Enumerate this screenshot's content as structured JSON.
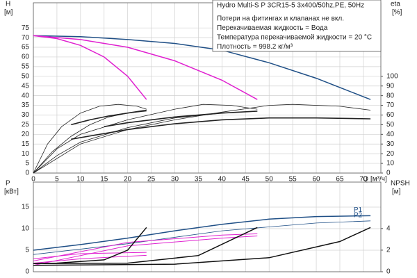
{
  "chart_data": [
    {
      "type": "line",
      "title": "Hydro Multi-S P 3CR15-5 3x400/50hz,PE, 50Hz",
      "annotations": [
        "Потери на фитингах и клапанах не вкл.",
        "Перекачиваемая жидкость = Вода",
        "Температура перекачиваемой жидкости = 20 °C",
        "Плотность = 998.2 кг/м³"
      ],
      "ylabel": "H",
      "yunit": "[м]",
      "y2label": "eta",
      "y2unit": "[%]",
      "xlabel": "Q",
      "xunit": "[м³/ч]",
      "xlim": [
        0,
        73.7
      ],
      "xticks": [
        0,
        5,
        10,
        15,
        20,
        25,
        30,
        35,
        40,
        45,
        50,
        55,
        60,
        65,
        70
      ],
      "ylim": [
        0,
        88
      ],
      "yticks": [
        0,
        5,
        10,
        15,
        20,
        25,
        30,
        35,
        40,
        45,
        50,
        55,
        60,
        65,
        70,
        75
      ],
      "y2lim": [
        0,
        176
      ],
      "y2ticks": [
        0,
        10,
        20,
        30,
        40,
        50,
        60,
        70,
        80,
        90,
        100
      ],
      "grid": true,
      "series": [
        {
          "color": "#1f4f86",
          "width": 1.5,
          "x": [
            0,
            10,
            20,
            30,
            40,
            50,
            60,
            71.5
          ],
          "values": [
            71,
            70.5,
            69,
            67,
            63.5,
            57,
            49,
            38
          ]
        },
        {
          "color": "#e020d0",
          "width": 1.5,
          "x": [
            0,
            5,
            10,
            15,
            20,
            24
          ],
          "values": [
            71,
            69.5,
            66,
            60,
            50,
            38
          ]
        },
        {
          "color": "#e020d0",
          "width": 1.5,
          "x": [
            0,
            10,
            20,
            30,
            40,
            47.5
          ],
          "values": [
            71,
            69,
            65,
            58,
            48,
            38
          ]
        },
        {
          "color": "#222222",
          "width": 0.8,
          "axis": "y2",
          "x": [
            0,
            3,
            6,
            10,
            14,
            18,
            22,
            24
          ],
          "values": [
            0,
            30,
            48,
            62,
            69,
            71,
            69,
            66
          ]
        },
        {
          "color": "#222222",
          "width": 0.8,
          "axis": "y2",
          "x": [
            0,
            4,
            8,
            12,
            16,
            20,
            24
          ],
          "values": [
            0,
            22,
            38,
            50,
            58,
            62,
            64
          ]
        },
        {
          "color": "#222222",
          "width": 1.6,
          "axis": "y2",
          "x": [
            8,
            12,
            16,
            20,
            24
          ],
          "values": [
            50,
            55,
            59,
            62,
            65
          ]
        },
        {
          "color": "#222222",
          "width": 0.8,
          "axis": "y2",
          "x": [
            0,
            5,
            10,
            20,
            30,
            36,
            42,
            47.5
          ],
          "values": [
            0,
            25,
            40,
            55,
            66,
            71,
            70,
            66
          ]
        },
        {
          "color": "#222222",
          "width": 0.8,
          "axis": "y2",
          "x": [
            0,
            5,
            10,
            20,
            30,
            40,
            47.5
          ],
          "values": [
            0,
            18,
            32,
            47,
            57,
            62,
            64
          ]
        },
        {
          "color": "#222222",
          "width": 1.6,
          "axis": "y2",
          "x": [
            15,
            20,
            30,
            40,
            47.5
          ],
          "values": [
            48,
            52,
            58,
            62,
            64
          ]
        },
        {
          "color": "#222222",
          "width": 0.8,
          "axis": "y2",
          "x": [
            0,
            10,
            20,
            30,
            40,
            50,
            55,
            65,
            71.5
          ],
          "values": [
            0,
            30,
            45,
            55,
            63,
            70,
            71,
            69,
            65
          ]
        },
        {
          "color": "#222222",
          "width": 1.6,
          "axis": "y2",
          "x": [
            8,
            20,
            30,
            40,
            50,
            60,
            71.5
          ],
          "values": [
            35,
            45,
            51,
            55,
            57,
            57,
            56
          ]
        }
      ]
    },
    {
      "type": "line",
      "ylabel": "P",
      "yunit": "[кВт]",
      "y2label": "NPSH",
      "y2unit": "[м]",
      "xlim": [
        0,
        73.7
      ],
      "ylim": [
        0,
        20.8
      ],
      "yticks": [
        0,
        5,
        10,
        15
      ],
      "y2lim": [
        0,
        8.3
      ],
      "y2ticks": [
        0,
        2,
        4
      ],
      "grid": true,
      "series": [
        {
          "name": "P1",
          "color": "#1f4f86",
          "width": 1.5,
          "x": [
            0,
            10,
            20,
            30,
            40,
            50,
            60,
            71.5
          ],
          "values": [
            5,
            6.3,
            7.8,
            9.5,
            11,
            12.2,
            12.8,
            13
          ]
        },
        {
          "name": "P2",
          "color": "#1f4f86",
          "width": 0.8,
          "x": [
            0,
            20,
            40,
            60,
            71.5
          ],
          "values": [
            4,
            6.5,
            9.5,
            11.3,
            11.8
          ]
        },
        {
          "color": "#e020d0",
          "width": 1,
          "x": [
            0,
            10,
            20,
            24
          ],
          "values": [
            2,
            3,
            3.6,
            3.8
          ]
        },
        {
          "color": "#e020d0",
          "width": 1,
          "x": [
            0,
            10,
            24
          ],
          "values": [
            3,
            4.2,
            4.5
          ]
        },
        {
          "color": "#e020d0",
          "width": 1,
          "x": [
            0,
            20,
            40,
            47.5
          ],
          "values": [
            1.5,
            6,
            7.8,
            8.3
          ]
        },
        {
          "color": "#e020d0",
          "width": 1,
          "x": [
            0,
            20,
            40,
            47.5
          ],
          "values": [
            2.5,
            6.8,
            8.5,
            8.8
          ]
        },
        {
          "color": "#111111",
          "width": 1.5,
          "axis": "y2",
          "x": [
            0,
            5,
            15,
            20,
            24
          ],
          "values": [
            0.75,
            0.8,
            1.1,
            2,
            4.1
          ]
        },
        {
          "color": "#111111",
          "width": 1.5,
          "axis": "y2",
          "x": [
            0,
            20,
            35,
            47.5
          ],
          "values": [
            0.75,
            0.8,
            1.5,
            4.1
          ]
        },
        {
          "color": "#111111",
          "width": 1.5,
          "axis": "y2",
          "x": [
            0,
            30,
            50,
            65,
            71.5
          ],
          "values": [
            0.6,
            0.7,
            1.3,
            2.8,
            4.1
          ]
        }
      ]
    }
  ]
}
